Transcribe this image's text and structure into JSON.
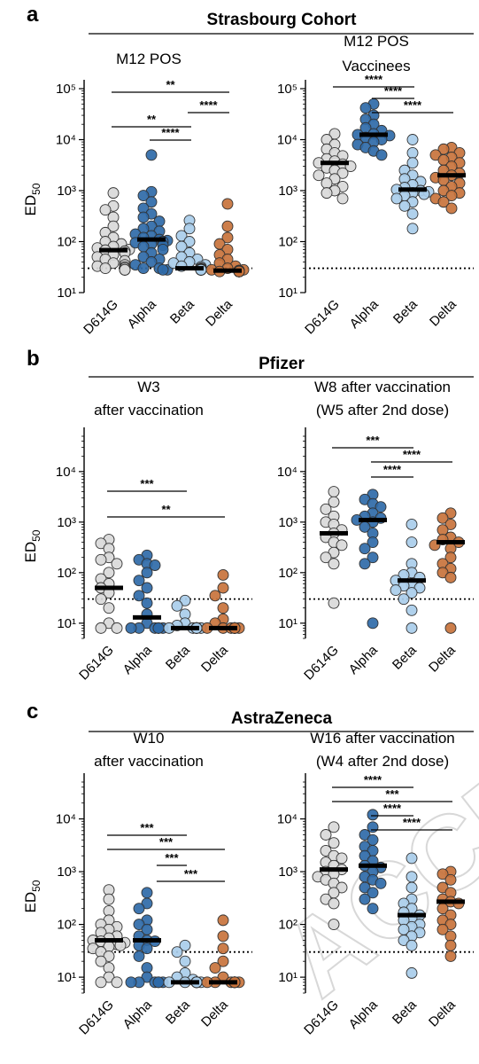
{
  "colors": {
    "D614G": "#d9d9d9",
    "Alpha": "#2f6aa8",
    "Beta": "#a9cdea",
    "Delta": "#c8733c",
    "stroke": "#333333",
    "median": "#000000"
  },
  "panels": [
    {
      "letter": "a",
      "cohort": "Strasbourg Cohort"
    },
    {
      "letter": "b",
      "cohort": "Pfizer"
    },
    {
      "letter": "c",
      "cohort": "AstraZeneca"
    }
  ],
  "watermark": "ACCEPTED",
  "chart_data": [
    {
      "type": "scatter",
      "panel": "a",
      "title": "M12 POS",
      "ylabel": "ED50",
      "yscale": "log",
      "ylim": [
        10,
        100000
      ],
      "categories": [
        "D614G",
        "Alpha",
        "Beta",
        "Delta"
      ],
      "threshold": 30,
      "medians": [
        68,
        110,
        30,
        27
      ],
      "points": [
        [
          900,
          500,
          420,
          300,
          200,
          150,
          120,
          100,
          90,
          80,
          75,
          70,
          68,
          65,
          60,
          55,
          50,
          45,
          42,
          38,
          35,
          33,
          32,
          30,
          30,
          30,
          30,
          30,
          28,
          28,
          28,
          28
        ],
        [
          5000,
          950,
          800,
          600,
          450,
          350,
          300,
          250,
          200,
          180,
          160,
          140,
          130,
          120,
          110,
          105,
          100,
          95,
          90,
          85,
          80,
          70,
          60,
          50,
          45,
          40,
          35,
          30,
          30,
          28,
          28
        ],
        [
          260,
          180,
          130,
          100,
          80,
          60,
          50,
          45,
          40,
          38,
          35,
          33,
          32,
          30,
          30,
          29,
          29,
          28,
          28,
          28,
          28,
          28,
          28,
          28,
          28,
          28,
          28
        ],
        [
          550,
          200,
          120,
          90,
          70,
          55,
          45,
          38,
          33,
          30,
          28,
          28,
          27,
          27,
          27,
          26,
          26,
          26,
          26,
          26,
          26,
          26,
          26,
          26,
          26,
          26
        ]
      ],
      "sig": [
        {
          "from": 0,
          "to": 3,
          "label": "**"
        },
        {
          "from": 2,
          "to": 3,
          "label": "****"
        },
        {
          "from": 0,
          "to": 2,
          "label": "**"
        },
        {
          "from": 1,
          "to": 2,
          "label": "****"
        }
      ]
    },
    {
      "type": "scatter",
      "panel": "a",
      "title": "M12 POS",
      "title2": "Vaccinees",
      "yscale": "log",
      "ylim": [
        10,
        100000
      ],
      "categories": [
        "D614G",
        "Alpha",
        "Beta",
        "Delta"
      ],
      "threshold": 30,
      "medians": [
        3500,
        12500,
        1050,
        2000
      ],
      "points": [
        [
          13000,
          10000,
          8000,
          6500,
          5500,
          4800,
          4200,
          3800,
          3500,
          3300,
          3000,
          2800,
          2500,
          2200,
          2000,
          1700,
          1400,
          1200,
          1000,
          900,
          700
        ],
        [
          50000,
          42000,
          30000,
          25000,
          20000,
          17000,
          15000,
          13000,
          12500,
          12000,
          11000,
          10000,
          9000,
          8000,
          7000,
          6000,
          5000
        ],
        [
          10000,
          5500,
          3500,
          2500,
          2000,
          1700,
          1500,
          1300,
          1150,
          1050,
          1000,
          950,
          900,
          850,
          800,
          700,
          600,
          500,
          350,
          180
        ],
        [
          7000,
          6500,
          5500,
          5000,
          4500,
          4000,
          3500,
          3000,
          2500,
          2200,
          2000,
          1800,
          1600,
          1400,
          1200,
          1000,
          900,
          800,
          700,
          600,
          450
        ]
      ],
      "sig": [
        {
          "from": 0,
          "to": 2,
          "label": "****"
        },
        {
          "from": 1,
          "to": 2,
          "label": "****"
        },
        {
          "from": 1,
          "to": 3,
          "label": "****"
        }
      ]
    },
    {
      "type": "scatter",
      "panel": "b",
      "title": "W3",
      "title2": "after vaccination",
      "ylabel": "ED50",
      "yscale": "log",
      "ylim": [
        5,
        50000
      ],
      "categories": [
        "D614G",
        "Alpha",
        "Beta",
        "Delta"
      ],
      "threshold": 30,
      "medians": [
        50,
        13,
        8,
        8
      ],
      "points": [
        [
          450,
          380,
          300,
          200,
          180,
          150,
          100,
          75,
          60,
          50,
          40,
          30,
          20,
          10,
          8,
          8
        ],
        [
          220,
          180,
          150,
          140,
          100,
          70,
          50,
          35,
          25,
          15,
          10,
          8,
          8,
          8,
          8,
          8,
          8
        ],
        [
          28,
          22,
          15,
          10,
          9,
          8,
          8,
          8,
          8,
          8,
          8,
          8,
          8,
          8,
          8,
          8
        ],
        [
          90,
          50,
          35,
          20,
          12,
          10,
          8,
          8,
          8,
          8,
          8,
          8,
          8,
          8,
          8,
          8,
          8
        ]
      ],
      "sig": [
        {
          "from": 0,
          "to": 2,
          "label": "***"
        },
        {
          "from": 0,
          "to": 3,
          "label": "**"
        }
      ]
    },
    {
      "type": "scatter",
      "panel": "b",
      "title": "W8 after vaccination",
      "title2": "(W5 after 2nd dose)",
      "yscale": "log",
      "ylim": [
        5,
        50000
      ],
      "categories": [
        "D614G",
        "Alpha",
        "Beta",
        "Delta"
      ],
      "threshold": 30,
      "medians": [
        600,
        1100,
        70,
        400
      ],
      "points": [
        [
          4000,
          2500,
          1800,
          1300,
          1000,
          900,
          700,
          600,
          500,
          400,
          350,
          250,
          200,
          150,
          25
        ],
        [
          3500,
          2800,
          2300,
          2000,
          1500,
          1300,
          1200,
          1100,
          1000,
          800,
          600,
          400,
          300,
          200,
          150,
          10
        ],
        [
          900,
          400,
          150,
          100,
          90,
          80,
          70,
          60,
          55,
          50,
          45,
          40,
          30,
          18,
          8
        ],
        [
          1500,
          1200,
          900,
          700,
          500,
          450,
          400,
          350,
          300,
          200,
          150,
          120,
          100,
          80,
          8
        ]
      ],
      "sig": [
        {
          "from": 0,
          "to": 2,
          "label": "***"
        },
        {
          "from": 1,
          "to": 3,
          "label": "****"
        },
        {
          "from": 1,
          "to": 2,
          "label": "****"
        }
      ]
    },
    {
      "type": "scatter",
      "panel": "c",
      "title": "W10",
      "title2": "after vaccination",
      "ylabel": "ED50",
      "yscale": "log",
      "ylim": [
        5,
        50000
      ],
      "categories": [
        "D614G",
        "Alpha",
        "Beta",
        "Delta"
      ],
      "threshold": 30,
      "medians": [
        50,
        50,
        8,
        8
      ],
      "points": [
        [
          450,
          300,
          180,
          120,
          100,
          90,
          80,
          70,
          60,
          55,
          50,
          48,
          45,
          42,
          40,
          38,
          35,
          30,
          25,
          20,
          15,
          10,
          8,
          8
        ],
        [
          400,
          250,
          200,
          120,
          100,
          80,
          60,
          50,
          48,
          40,
          35,
          25,
          15,
          10,
          8,
          8,
          8,
          8,
          8,
          8
        ],
        [
          40,
          30,
          20,
          12,
          10,
          9,
          8,
          8,
          8,
          8,
          8,
          8,
          8,
          8,
          8,
          8,
          8,
          8
        ],
        [
          120,
          60,
          35,
          20,
          15,
          10,
          8,
          8,
          8,
          8,
          8,
          8,
          8,
          8,
          8,
          8,
          8,
          8
        ]
      ],
      "sig": [
        {
          "from": 0,
          "to": 2,
          "label": "***"
        },
        {
          "from": 0,
          "to": 3,
          "label": "***"
        },
        {
          "from": 2,
          "to": 2,
          "label": "***"
        },
        {
          "from": 2,
          "to": 3,
          "label": "***"
        }
      ]
    },
    {
      "type": "scatter",
      "panel": "c",
      "title": "W16 after vaccination",
      "title2": "(W4 after 2nd dose)",
      "yscale": "log",
      "ylim": [
        5,
        50000
      ],
      "categories": [
        "D614G",
        "Alpha",
        "Beta",
        "Delta"
      ],
      "threshold": 30,
      "medians": [
        1100,
        1300,
        150,
        270
      ],
      "points": [
        [
          7000,
          5000,
          3500,
          2500,
          2000,
          1800,
          1500,
          1300,
          1100,
          1000,
          900,
          800,
          700,
          600,
          500,
          400,
          300,
          250,
          100
        ],
        [
          12000,
          7000,
          5000,
          4000,
          3000,
          2500,
          2000,
          1600,
          1300,
          1200,
          1000,
          800,
          700,
          600,
          500,
          400,
          300,
          200
        ],
        [
          1800,
          800,
          500,
          300,
          250,
          200,
          170,
          150,
          130,
          120,
          100,
          90,
          80,
          70,
          60,
          50,
          40,
          12
        ],
        [
          1000,
          900,
          700,
          500,
          400,
          300,
          270,
          250,
          200,
          150,
          120,
          100,
          80,
          60,
          40,
          25
        ]
      ],
      "sig": [
        {
          "from": 0,
          "to": 2,
          "label": "****"
        },
        {
          "from": 0,
          "to": 3,
          "label": "***"
        },
        {
          "from": 1,
          "to": 2,
          "label": "****"
        },
        {
          "from": 1,
          "to": 3,
          "label": "****"
        }
      ]
    }
  ]
}
